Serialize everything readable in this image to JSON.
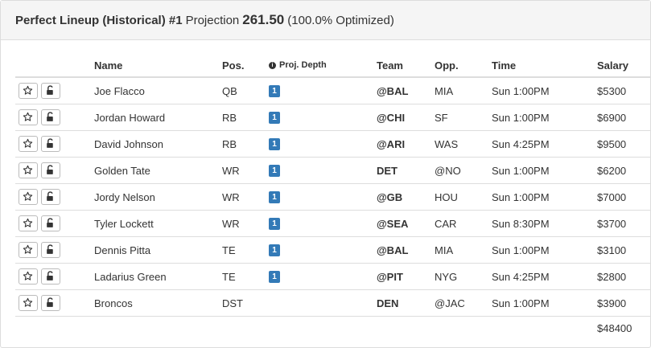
{
  "header": {
    "title": "Perfect Lineup (Historical) #1",
    "projection_label": "Projection",
    "projection_value": "261.50",
    "optimized": "(100.0% Optimized)"
  },
  "table": {
    "columns": {
      "name": "Name",
      "pos": "Pos.",
      "depth": "Proj. Depth",
      "team": "Team",
      "opp": "Opp.",
      "time": "Time",
      "salary": "Salary"
    },
    "rows": [
      {
        "name": "Joe Flacco",
        "pos": "QB",
        "depth": "1",
        "team": "@BAL",
        "opp": "MIA",
        "time": "Sun 1:00PM",
        "salary": "$5300"
      },
      {
        "name": "Jordan Howard",
        "pos": "RB",
        "depth": "1",
        "team": "@CHI",
        "opp": "SF",
        "time": "Sun 1:00PM",
        "salary": "$6900"
      },
      {
        "name": "David Johnson",
        "pos": "RB",
        "depth": "1",
        "team": "@ARI",
        "opp": "WAS",
        "time": "Sun 4:25PM",
        "salary": "$9500"
      },
      {
        "name": "Golden Tate",
        "pos": "WR",
        "depth": "1",
        "team": "DET",
        "opp": "@NO",
        "time": "Sun 1:00PM",
        "salary": "$6200"
      },
      {
        "name": "Jordy Nelson",
        "pos": "WR",
        "depth": "1",
        "team": "@GB",
        "opp": "HOU",
        "time": "Sun 1:00PM",
        "salary": "$7000"
      },
      {
        "name": "Tyler Lockett",
        "pos": "WR",
        "depth": "1",
        "team": "@SEA",
        "opp": "CAR",
        "time": "Sun 8:30PM",
        "salary": "$3700"
      },
      {
        "name": "Dennis Pitta",
        "pos": "TE",
        "depth": "1",
        "team": "@BAL",
        "opp": "MIA",
        "time": "Sun 1:00PM",
        "salary": "$3100"
      },
      {
        "name": "Ladarius Green",
        "pos": "TE",
        "depth": "1",
        "team": "@PIT",
        "opp": "NYG",
        "time": "Sun 4:25PM",
        "salary": "$2800"
      },
      {
        "name": "Broncos",
        "pos": "DST",
        "depth": "",
        "team": "DEN",
        "opp": "@JAC",
        "time": "Sun 1:00PM",
        "salary": "$3900"
      }
    ],
    "total_salary": "$48400"
  },
  "icons": {
    "star": "star-icon",
    "lock": "unlock-icon",
    "info": "info-icon"
  },
  "colors": {
    "badge": "#337ab7",
    "heading_bg": "#f5f5f5",
    "border": "#dddddd"
  }
}
